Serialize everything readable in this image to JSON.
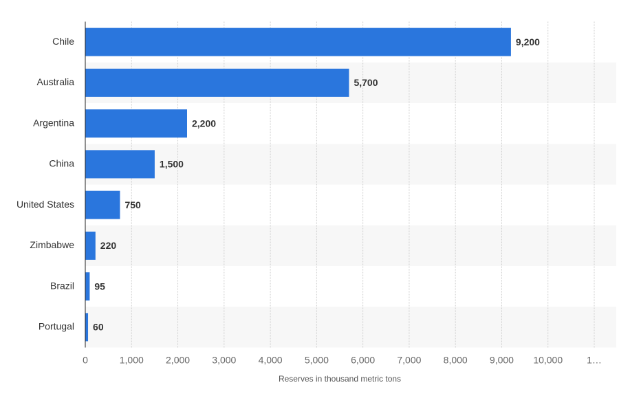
{
  "chart_data": {
    "type": "bar",
    "orientation": "horizontal",
    "xlabel": "Reserves in thousand metric tons",
    "categories": [
      "Chile",
      "Australia",
      "Argentina",
      "China",
      "United States",
      "Zimbabwe",
      "Brazil",
      "Portugal"
    ],
    "values": [
      9200,
      5700,
      2200,
      1500,
      750,
      220,
      95,
      60
    ],
    "value_labels": [
      "9,200",
      "5,700",
      "2,200",
      "1,500",
      "750",
      "220",
      "95",
      "60"
    ],
    "color": "#2a76dd",
    "xlim": [
      0,
      11000
    ],
    "xticks": [
      0,
      {
        "value": 1000,
        "label": "1,000"
      },
      {
        "value": 2000,
        "label": "2,000"
      },
      {
        "value": 3000,
        "label": "3,000"
      },
      {
        "value": 4000,
        "label": "4,000"
      },
      {
        "value": 5000,
        "label": "5,000"
      },
      {
        "value": 6000,
        "label": "6,000"
      },
      {
        "value": 7000,
        "label": "7,000"
      },
      {
        "value": 8000,
        "label": "8,000"
      },
      {
        "value": 9000,
        "label": "9,000"
      },
      {
        "value": 10000,
        "label": "10,000"
      },
      {
        "value": 11000,
        "label": "1…"
      }
    ],
    "grid": true
  }
}
